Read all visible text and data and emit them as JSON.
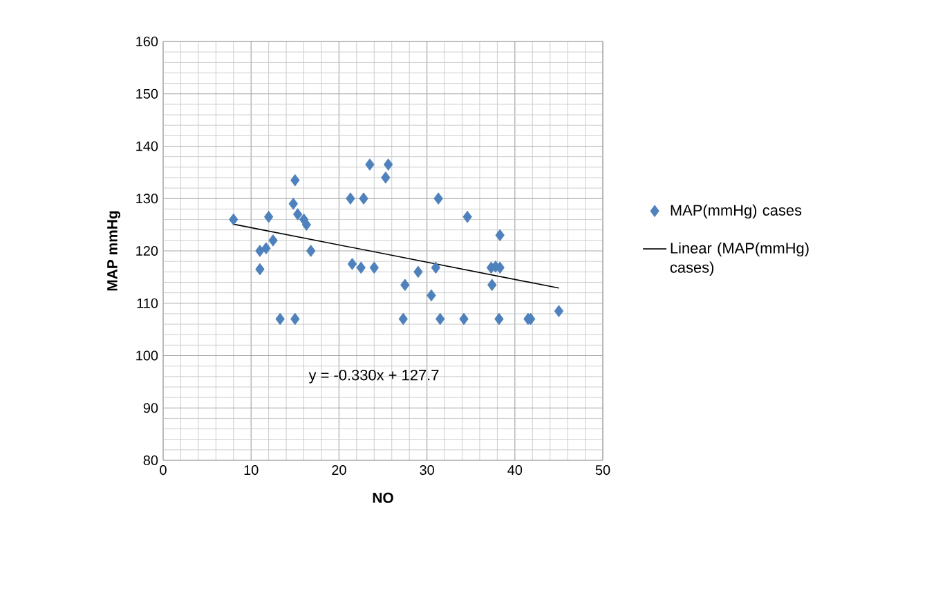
{
  "chart_data": {
    "type": "scatter",
    "xlabel": "NO",
    "ylabel": "MAP mmHg",
    "xlim": [
      0,
      50
    ],
    "xticks": [
      0,
      10,
      20,
      30,
      40,
      50
    ],
    "ylim": [
      80,
      160
    ],
    "yticks": [
      80,
      90,
      100,
      110,
      120,
      130,
      140,
      150,
      160
    ],
    "grid": true,
    "legend": "right",
    "marker": "diamond",
    "annotations": [
      "y = -0.330x + 127.7"
    ],
    "series": [
      {
        "name": "MAP(mmHg) cases",
        "color": "#4f81bd",
        "x": [
          8,
          11,
          11,
          11.7,
          12,
          12.5,
          13.3,
          14.8,
          15,
          15,
          15.3,
          16,
          16.3,
          16.8,
          21.3,
          21.5,
          22.5,
          22.8,
          23.5,
          24,
          25.3,
          25.6,
          27.3,
          27.5,
          29,
          30.5,
          31,
          31.3,
          31.5,
          34.2,
          34.6,
          37.3,
          37.4,
          37.8,
          38.2,
          38.3,
          38.3,
          41.5,
          41.8,
          45
        ],
        "values": [
          126,
          116.5,
          120,
          120.5,
          126.5,
          122,
          107,
          129,
          133.5,
          107,
          127,
          126,
          125,
          120,
          130,
          117.5,
          116.8,
          130,
          136.5,
          116.8,
          134,
          136.5,
          107,
          113.5,
          116,
          111.5,
          116.8,
          130,
          107,
          107,
          126.5,
          116.8,
          113.5,
          117,
          107,
          116.8,
          123,
          107,
          107,
          108.5
        ]
      },
      {
        "name": "Linear (MAP(mmHg) cases)",
        "color": "#000000",
        "type": "line",
        "marker": "none",
        "x": [
          8,
          45
        ],
        "values": [
          125.1,
          112.9
        ]
      }
    ]
  }
}
